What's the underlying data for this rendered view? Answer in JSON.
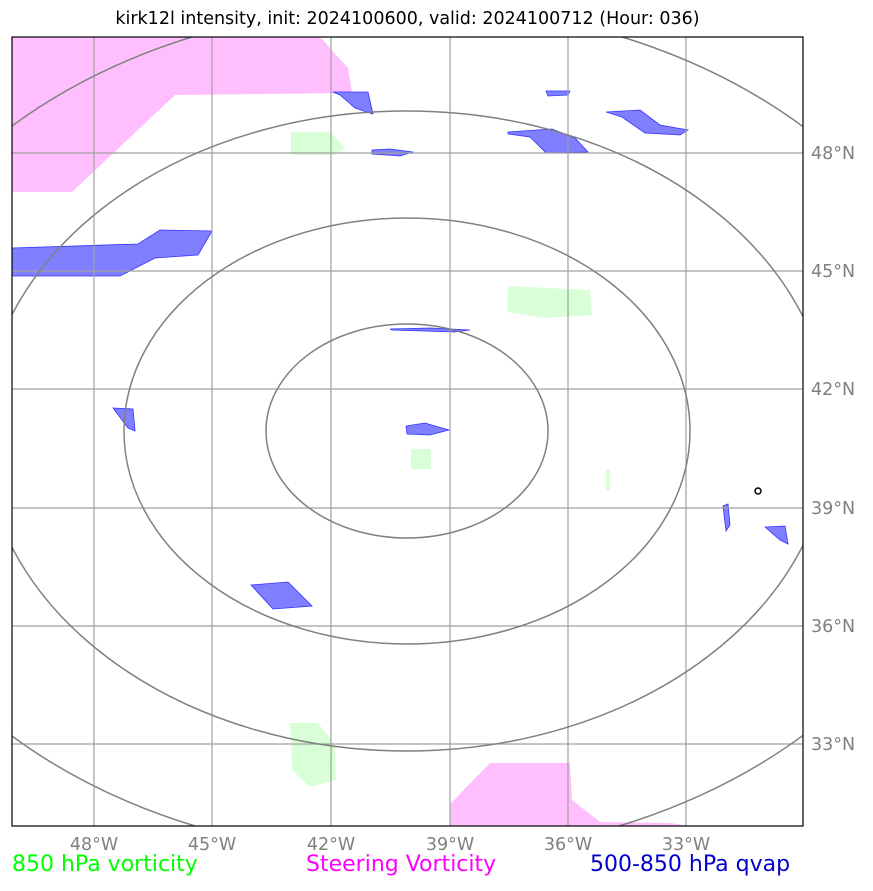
{
  "title": "kirk12l intensity, init: 2024100600, valid: 2024100712 (Hour: 036)",
  "lon_labels": [
    "48°W",
    "45°W",
    "42°W",
    "39°W",
    "36°W",
    "33°W"
  ],
  "lat_labels": [
    "48°N",
    "45°N",
    "42°N",
    "39°N",
    "36°N",
    "33°N"
  ],
  "legend": [
    {
      "label": "850 hPa vorticity",
      "color": "#00ff00"
    },
    {
      "label": "Steering Vorticity",
      "color": "#ff00ff"
    },
    {
      "label": "500-850 hPa qvap",
      "color": "#0000cc"
    }
  ],
  "colors": {
    "vorticity_fill": "#d9ffd9",
    "steering_fill": "#ffbfff",
    "qvap_fill": "#7f7fff",
    "qvap_edge": "#3333ff",
    "grid": "#a0a0a0",
    "range_rings": "#808080"
  }
}
